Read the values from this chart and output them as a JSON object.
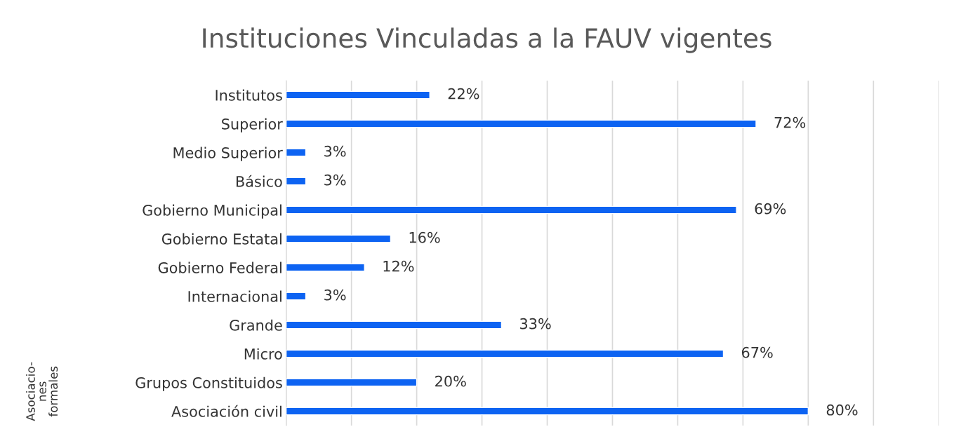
{
  "chart_data": {
    "type": "bar",
    "orientation": "horizontal",
    "title": "Instituciones Vinculadas a la FAUV vigentes",
    "categories": [
      "Institutos",
      "Superior",
      "Medio Superior",
      "Básico",
      "Gobierno Municipal",
      "Gobierno Estatal",
      "Gobierno Federal",
      "Internacional",
      "Grande",
      "Micro",
      "Grupos Constituidos",
      "Asociación civil"
    ],
    "values": [
      22,
      72,
      3,
      3,
      69,
      16,
      12,
      3,
      33,
      67,
      20,
      80
    ],
    "value_labels": [
      "22%",
      "72%",
      "3%",
      "3%",
      "69%",
      "16%",
      "12%",
      "3%",
      "33%",
      "67%",
      "20%",
      "80%"
    ],
    "color": "#0d63f2",
    "xlim": [
      0,
      100
    ],
    "xticks": [
      {
        "value": 0,
        "label": null
      },
      {
        "value": 10,
        "label": null
      },
      {
        "value": 20,
        "label": null
      },
      {
        "value": 30,
        "label": null
      },
      {
        "value": 40,
        "label": null
      },
      {
        "value": 50,
        "label": null
      },
      {
        "value": 60,
        "label": null
      },
      {
        "value": 70,
        "label": null
      },
      {
        "value": 80,
        "label": null
      },
      {
        "value": 90,
        "label": null
      },
      {
        "value": 100,
        "label": null
      }
    ],
    "tick_labels": "y",
    "grid": "x",
    "annotations": [
      "Asociacio-\nnes\nformales"
    ]
  }
}
